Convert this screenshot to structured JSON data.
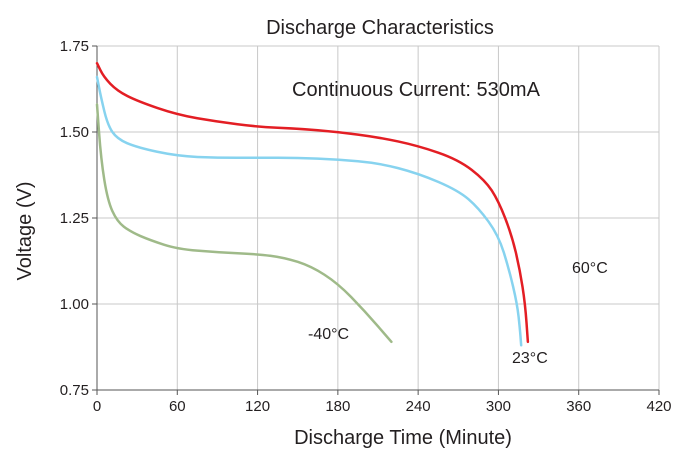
{
  "chart_data": {
    "type": "line",
    "title": "Discharge Characteristics",
    "xlabel": "Discharge Time (Minute)",
    "ylabel": "Voltage (V)",
    "xlim": [
      0,
      420
    ],
    "ylim": [
      0.75,
      1.75
    ],
    "xticks": [
      "0",
      "60",
      "120",
      "180",
      "240",
      "300",
      "360",
      "420"
    ],
    "yticks": [
      "0.75",
      "1.00",
      "1.25",
      "1.50",
      "1.75"
    ],
    "grid": true,
    "annotation": "Continuous Current: 530mA",
    "series": [
      {
        "name": "60°C",
        "color": "#e31e24",
        "x": [
          0,
          5,
          15,
          30,
          60,
          90,
          120,
          150,
          180,
          210,
          240,
          270,
          290,
          300,
          310,
          316,
          320,
          322
        ],
        "y": [
          1.7,
          1.66,
          1.62,
          1.59,
          1.55,
          1.53,
          1.515,
          1.51,
          1.5,
          1.485,
          1.46,
          1.42,
          1.36,
          1.3,
          1.2,
          1.1,
          1.0,
          0.89
        ]
      },
      {
        "name": "23°C",
        "color": "#87d3ef",
        "x": [
          0,
          3,
          8,
          15,
          30,
          60,
          90,
          120,
          150,
          180,
          210,
          240,
          270,
          285,
          300,
          308,
          314,
          316,
          317
        ],
        "y": [
          1.66,
          1.6,
          1.52,
          1.48,
          1.455,
          1.43,
          1.425,
          1.425,
          1.425,
          1.42,
          1.41,
          1.38,
          1.33,
          1.28,
          1.2,
          1.1,
          1.0,
          0.93,
          0.88
        ]
      },
      {
        "name": "-40°C",
        "color": "#9fba89",
        "x": [
          0,
          3,
          8,
          15,
          25,
          40,
          60,
          90,
          120,
          140,
          160,
          180,
          200,
          220
        ],
        "y": [
          1.58,
          1.42,
          1.3,
          1.24,
          1.21,
          1.185,
          1.16,
          1.15,
          1.145,
          1.135,
          1.11,
          1.06,
          0.98,
          0.89
        ]
      }
    ]
  }
}
